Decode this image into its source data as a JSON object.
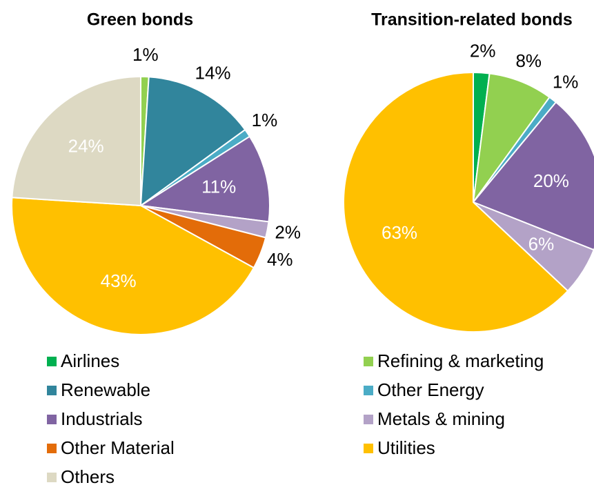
{
  "chart_data": [
    {
      "type": "pie",
      "title": "Green bonds",
      "categories": [
        "Refining & marketing",
        "Renewable",
        "Other Energy",
        "Industrials",
        "Metals & mining",
        "Other Material",
        "Utilities",
        "Others"
      ],
      "values": [
        1,
        14,
        1,
        11,
        2,
        4,
        43,
        24
      ],
      "value_labels": [
        "1%",
        "14%",
        "1%",
        "11%",
        "2%",
        "4%",
        "43%",
        "24%"
      ],
      "label_positions": [
        "outside",
        "outside",
        "outside",
        "inside",
        "outside",
        "outside",
        "inside",
        "inside"
      ]
    },
    {
      "type": "pie",
      "title": "Transition-related bonds",
      "categories": [
        "Airlines",
        "Refining & marketing",
        "Other Energy",
        "Industrials",
        "Metals & mining",
        "Utilities"
      ],
      "values": [
        2,
        8,
        1,
        20,
        6,
        63
      ],
      "value_labels": [
        "2%",
        "8%",
        "1%",
        "20%",
        "6%",
        "63%"
      ],
      "label_positions": [
        "outside",
        "outside",
        "outside",
        "inside",
        "inside",
        "inside"
      ]
    }
  ],
  "legend": {
    "labels": [
      "Airlines",
      "Refining & marketing",
      "Renewable",
      "Other Energy",
      "Industrials",
      "Metals & mining",
      "Other Material",
      "Utilities",
      "Others"
    ],
    "colors": [
      "#00b050",
      "#92d050",
      "#31859c",
      "#4bacc6",
      "#8064a2",
      "#b3a2c7",
      "#e36c09",
      "#ffc000",
      "#ddd9c3"
    ]
  }
}
